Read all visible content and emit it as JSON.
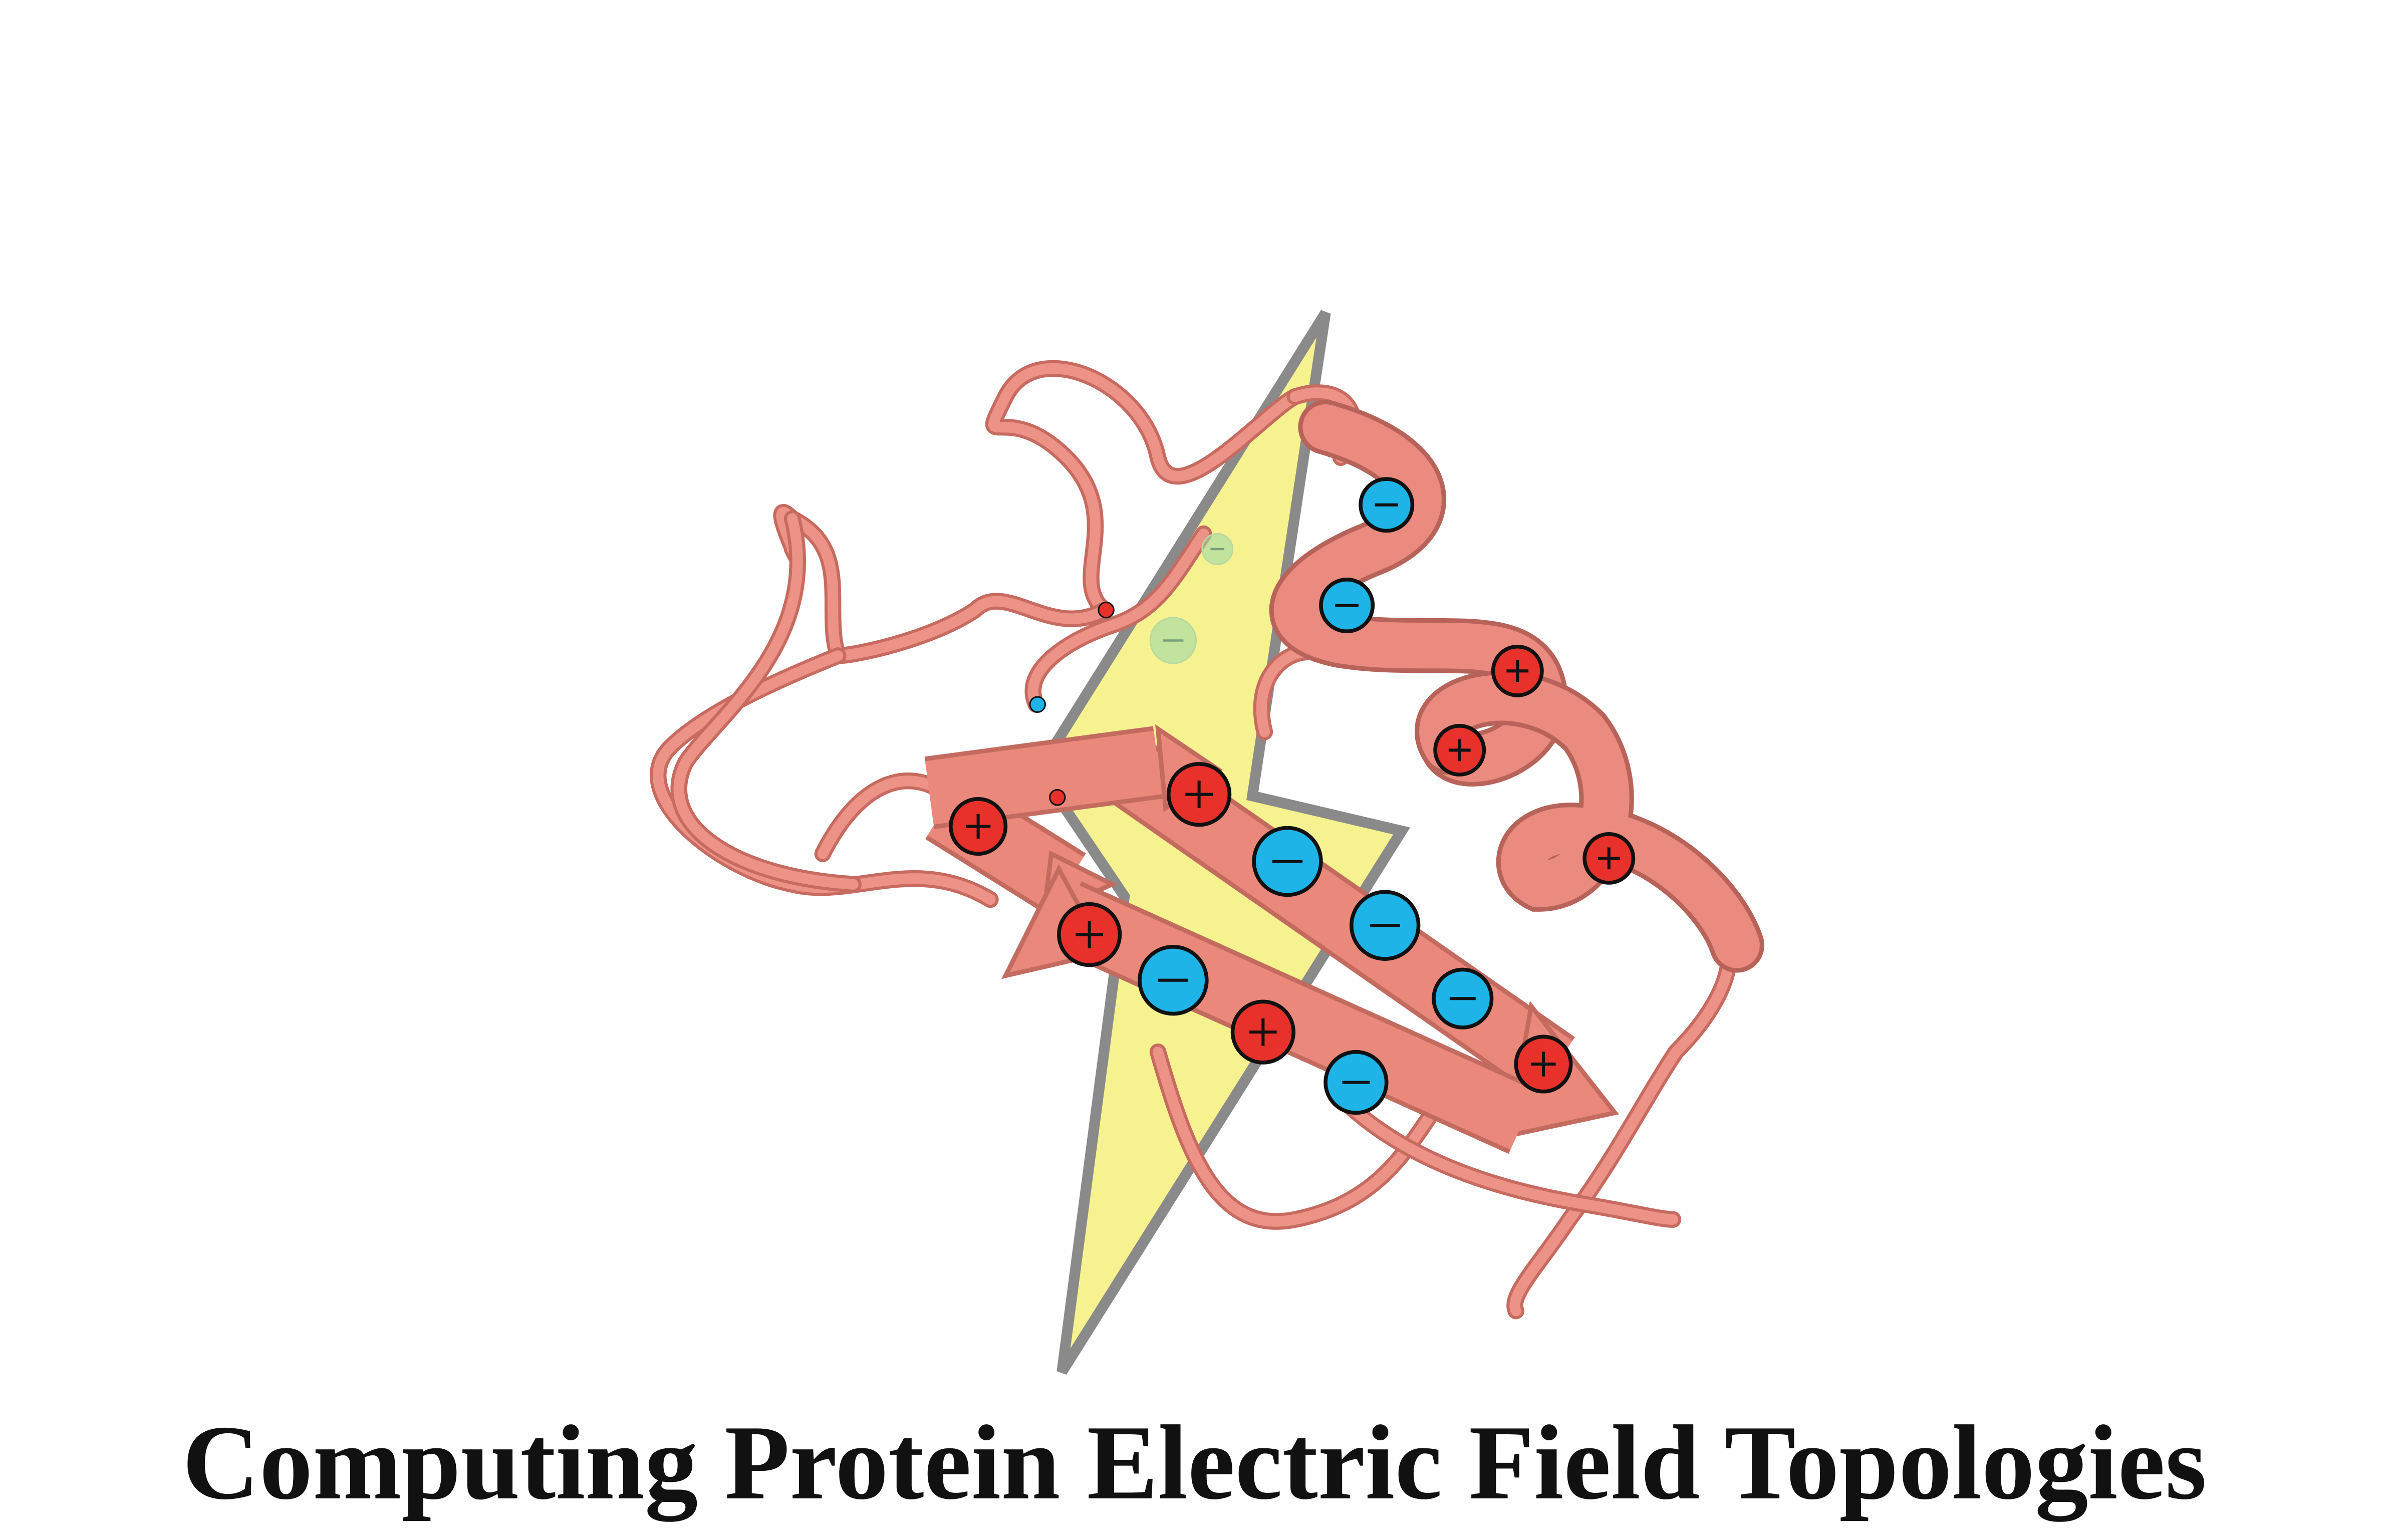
{
  "title": "Computing Protein Electric Field Topologies"
}
